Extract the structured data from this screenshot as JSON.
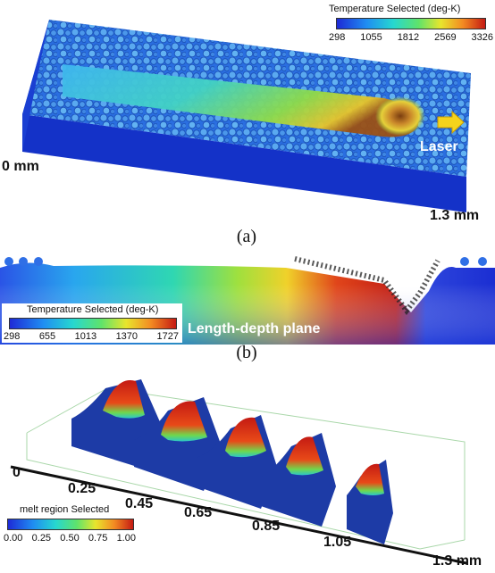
{
  "panel_a": {
    "caption": "(a)",
    "colorbar": {
      "title": "Temperature Selected (deg-K)",
      "ticks": [
        "298",
        "1055",
        "1812",
        "2569",
        "3326"
      ]
    },
    "label_start": "0 mm",
    "label_end": "1.3 mm",
    "laser_label": "Laser"
  },
  "panel_b": {
    "caption": "(b)",
    "colorbar": {
      "title": "Temperature Selected (deg-K)",
      "ticks": [
        "298",
        "655",
        "1013",
        "1370",
        "1727"
      ]
    },
    "plane_label": "Length-depth plane"
  },
  "panel_c": {
    "axis_ticks": [
      "0",
      "0.25",
      "0.45",
      "0.65",
      "0.85",
      "1.05",
      "1.3 mm"
    ],
    "colorbar": {
      "title": "melt region Selected",
      "ticks": [
        "0.00",
        "0.25",
        "0.50",
        "0.75",
        "1.00"
      ]
    }
  }
}
